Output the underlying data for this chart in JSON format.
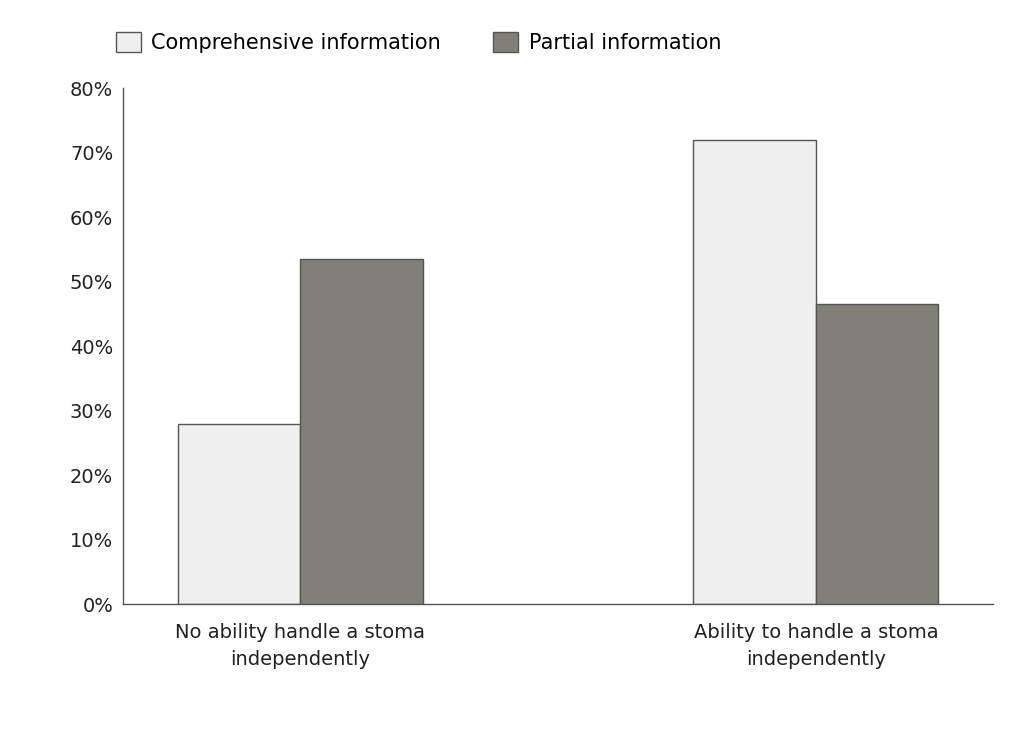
{
  "groups": [
    "No ability handle a stoma\nindependently",
    "Ability to handle a stoma\nindependently"
  ],
  "series": [
    {
      "label": "Comprehensive information",
      "values": [
        28.0,
        72.0
      ],
      "color": "#efefef",
      "edgecolor": "#555555"
    },
    {
      "label": "Partial information",
      "values": [
        53.5,
        46.5
      ],
      "color": "#808078",
      "edgecolor": "#555555"
    }
  ],
  "ylim": [
    0,
    80
  ],
  "yticks": [
    0,
    10,
    20,
    30,
    40,
    50,
    60,
    70,
    80
  ],
  "ytick_labels": [
    "0%",
    "10%",
    "20%",
    "30%",
    "40%",
    "50%",
    "60%",
    "70%",
    "80%"
  ],
  "bar_width": 0.38,
  "group_positions": [
    1.0,
    2.6
  ],
  "xlim": [
    0.45,
    3.15
  ],
  "background_color": "#ffffff",
  "legend_fontsize": 15,
  "tick_fontsize": 14,
  "xlabel_fontsize": 14
}
